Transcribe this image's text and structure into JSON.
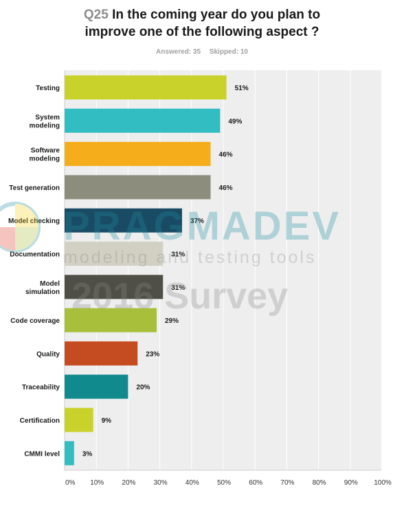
{
  "header": {
    "question_number": "Q25",
    "title_line1": "In the coming year do you plan to",
    "title_line2": "improve one of the following aspect ?",
    "answered": "Answered: 35",
    "skipped": "Skipped: 10"
  },
  "watermark": {
    "brand": "PRAGMADEV",
    "tagline": "modeling and testing tools",
    "subtitle": "2016 Survey"
  },
  "colors": {
    "plot_background": "#eeeeee",
    "gridline": "#ffffff",
    "axis": "#cccccc",
    "label_text": "#1a1a1a",
    "watermark_brand": "#1e8fa3",
    "watermark_subtitle": "#8a8a8a"
  },
  "chart_data": {
    "type": "bar",
    "orientation": "horizontal",
    "categories": [
      [
        "Testing"
      ],
      [
        "System",
        "modeling"
      ],
      [
        "Software",
        "modeling"
      ],
      [
        "Test generation"
      ],
      [
        "Model checking"
      ],
      [
        "Documentation"
      ],
      [
        "Model",
        "simulation"
      ],
      [
        "Code coverage"
      ],
      [
        "Quality"
      ],
      [
        "Traceability"
      ],
      [
        "Certification"
      ],
      [
        "CMMI level"
      ]
    ],
    "values": [
      51,
      49,
      46,
      46,
      37,
      31,
      31,
      29,
      23,
      20,
      9,
      3
    ],
    "value_labels": [
      "51%",
      "49%",
      "46%",
      "46%",
      "37%",
      "31%",
      "31%",
      "29%",
      "23%",
      "20%",
      "9%",
      "3%"
    ],
    "colors": [
      "#c9d12b",
      "#31bdc2",
      "#f5ad1c",
      "#8d8d7e",
      "#1a4b65",
      "#d1d0c3",
      "#4f4f47",
      "#a7bf3a",
      "#c54c21",
      "#108a8c",
      "#c9d12b",
      "#31bdc2"
    ],
    "x_ticks": [
      "0%",
      "10%",
      "20%",
      "30%",
      "40%",
      "50%",
      "60%",
      "70%",
      "80%",
      "90%",
      "100%"
    ],
    "xlim": [
      0,
      100
    ],
    "grid": true,
    "legend": "none"
  }
}
